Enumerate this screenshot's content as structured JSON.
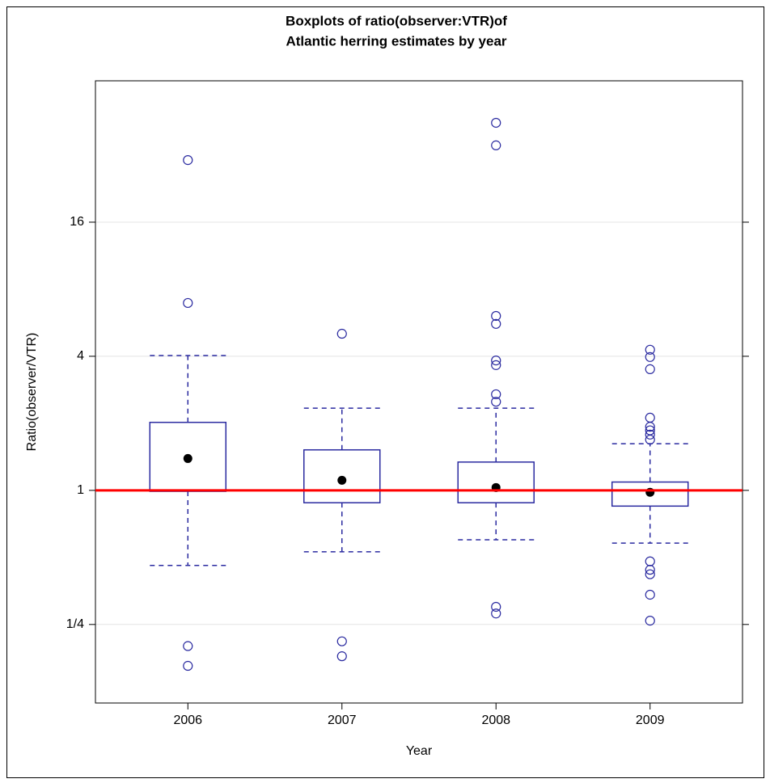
{
  "chart_data": {
    "type": "box",
    "title_lines": [
      "Boxplots of ratio(observer:VTR)of",
      "Atlantic herring estimates by year"
    ],
    "x_label": "Year",
    "y_label": "Ratio(observer/VTR)",
    "categories": [
      "2006",
      "2007",
      "2008",
      "2009"
    ],
    "boxes": [
      {
        "whisker_low": 0.46,
        "q1": 0.99,
        "median": 1.39,
        "q3": 2.02,
        "whisker_high": 4.03,
        "outliers": [
          30.4,
          6.94,
          0.2,
          0.163
        ]
      },
      {
        "whisker_low": 0.53,
        "q1": 0.88,
        "median": 1.11,
        "q3": 1.52,
        "whisker_high": 2.34,
        "outliers": [
          5.05,
          0.21,
          0.18
        ]
      },
      {
        "whisker_low": 0.6,
        "q1": 0.88,
        "median": 1.03,
        "q3": 1.34,
        "whisker_high": 2.34,
        "outliers": [
          44.7,
          35.4,
          6.07,
          5.59,
          3.83,
          3.65,
          2.7,
          2.5,
          0.3,
          0.28
        ]
      },
      {
        "whisker_low": 0.58,
        "q1": 0.85,
        "median": 0.98,
        "q3": 1.09,
        "whisker_high": 1.62,
        "outliers": [
          4.28,
          3.97,
          3.5,
          2.12,
          1.93,
          1.86,
          1.78,
          1.69,
          0.48,
          0.44,
          0.42,
          0.34,
          0.26
        ]
      }
    ],
    "box_color": "#2a2aa0",
    "median_color": "#000000",
    "outlier_color": "#2a2aa0",
    "reference_line": {
      "value": 1,
      "color": "#ff0000"
    },
    "log_scale": true,
    "grid": true,
    "ylim": [
      0.111,
      69
    ],
    "yticks": [
      {
        "value": 0.25,
        "label": "1/4"
      },
      1,
      4,
      16
    ]
  }
}
